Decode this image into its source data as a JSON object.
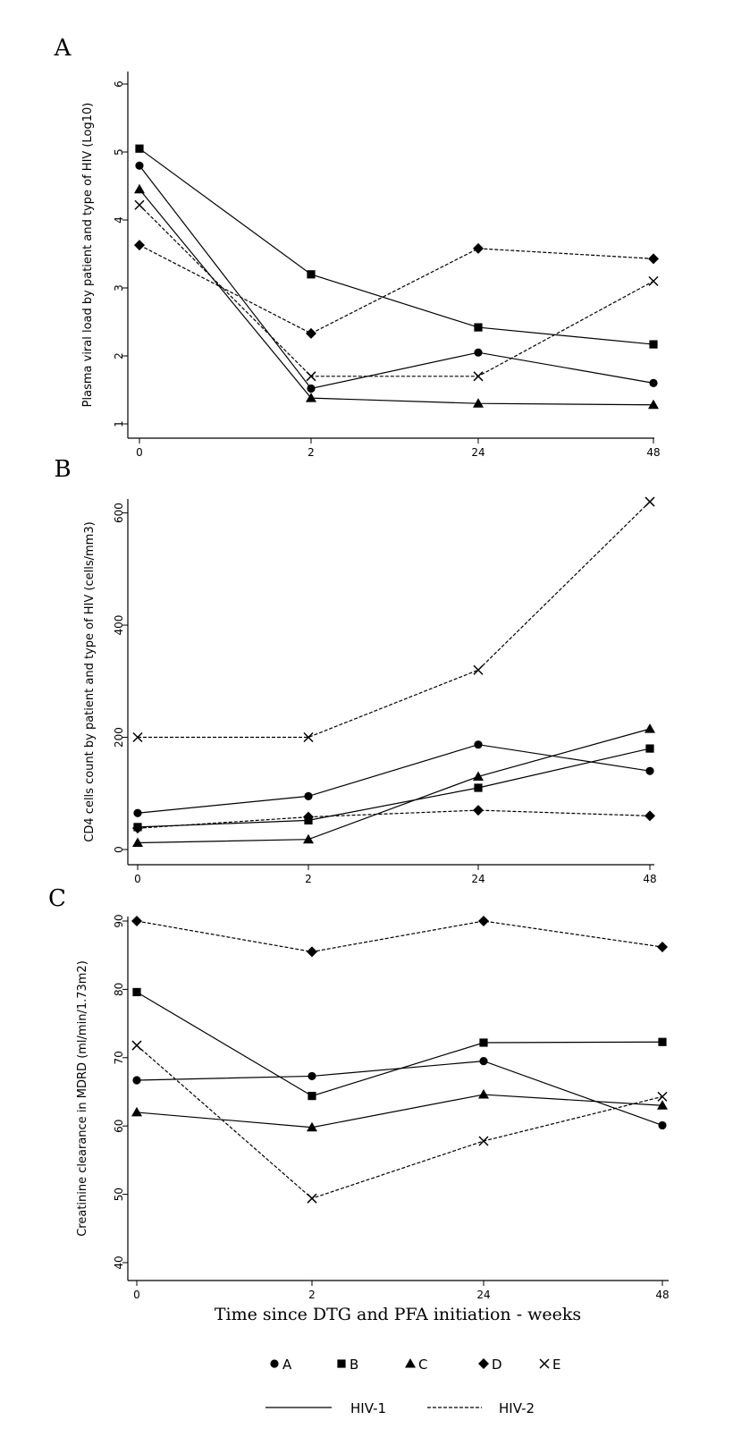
{
  "chart_data": [
    {
      "type": "line",
      "panel": "A",
      "title": "",
      "xlabel": "",
      "ylabel": "Plasma viral load by patient and type of HIV (Log10)",
      "x": [
        "0",
        "2",
        "24",
        "48"
      ],
      "ylim": [
        1,
        6
      ],
      "yticks": [
        1,
        2,
        3,
        4,
        5,
        6
      ],
      "grid": false,
      "series": [
        {
          "name": "A",
          "marker": "circle",
          "hiv": "HIV-1",
          "values": [
            4.8,
            1.52,
            2.05,
            1.6
          ]
        },
        {
          "name": "B",
          "marker": "square",
          "hiv": "HIV-1",
          "values": [
            5.05,
            3.2,
            2.42,
            2.17
          ]
        },
        {
          "name": "C",
          "marker": "triangle",
          "hiv": "HIV-1",
          "values": [
            4.45,
            1.38,
            1.3,
            1.28
          ]
        },
        {
          "name": "D",
          "marker": "diamond",
          "hiv": "HIV-2",
          "values": [
            3.63,
            2.33,
            3.58,
            3.43
          ]
        },
        {
          "name": "E",
          "marker": "x",
          "hiv": "HIV-2",
          "values": [
            4.22,
            1.7,
            1.7,
            3.1
          ]
        }
      ]
    },
    {
      "type": "line",
      "panel": "B",
      "title": "",
      "xlabel": "",
      "ylabel": "CD4 cells count by patient and type of HIV (cells/mm3)",
      "x": [
        "0",
        "2",
        "24",
        "48"
      ],
      "ylim": [
        0,
        640
      ],
      "yticks": [
        0,
        200,
        400,
        600
      ],
      "grid": false,
      "series": [
        {
          "name": "A",
          "marker": "circle",
          "hiv": "HIV-1",
          "values": [
            65,
            95,
            187,
            140
          ]
        },
        {
          "name": "B",
          "marker": "square",
          "hiv": "HIV-1",
          "values": [
            40,
            52,
            110,
            180
          ]
        },
        {
          "name": "C",
          "marker": "triangle",
          "hiv": "HIV-1",
          "values": [
            12,
            18,
            130,
            215
          ]
        },
        {
          "name": "D",
          "marker": "diamond",
          "hiv": "HIV-2",
          "values": [
            38,
            58,
            70,
            60
          ]
        },
        {
          "name": "E",
          "marker": "x",
          "hiv": "HIV-2",
          "values": [
            200,
            200,
            320,
            620
          ]
        }
      ]
    },
    {
      "type": "line",
      "panel": "C",
      "title": "",
      "xlabel": "Time since DTG and PFA initiation - weeks",
      "ylabel": "Creatinine clearance in MDRD (ml/min/1.73m2)",
      "x": [
        "0",
        "2",
        "24",
        "48"
      ],
      "ylim": [
        40,
        90
      ],
      "yticks": [
        40,
        50,
        60,
        70,
        80,
        90
      ],
      "grid": false,
      "series": [
        {
          "name": "A",
          "marker": "circle",
          "hiv": "HIV-1",
          "values": [
            66.7,
            67.3,
            69.5,
            60.1
          ]
        },
        {
          "name": "B",
          "marker": "square",
          "hiv": "HIV-1",
          "values": [
            79.6,
            64.4,
            72.2,
            72.3
          ]
        },
        {
          "name": "C",
          "marker": "triangle",
          "hiv": "HIV-1",
          "values": [
            62.0,
            59.8,
            64.6,
            63.0
          ]
        },
        {
          "name": "D",
          "marker": "diamond",
          "hiv": "HIV-2",
          "values": [
            90.0,
            85.5,
            90.0,
            86.2
          ]
        },
        {
          "name": "E",
          "marker": "x",
          "hiv": "HIV-2",
          "values": [
            71.8,
            49.4,
            57.8,
            64.3
          ]
        }
      ]
    }
  ],
  "legend": {
    "patients": [
      {
        "label": "A",
        "marker": "circle"
      },
      {
        "label": "B",
        "marker": "square"
      },
      {
        "label": "C",
        "marker": "triangle"
      },
      {
        "label": "D",
        "marker": "diamond"
      },
      {
        "label": "E",
        "marker": "x"
      }
    ],
    "hiv_types": [
      {
        "label": "HIV-1",
        "style": "solid"
      },
      {
        "label": "HIV-2",
        "style": "dashed"
      }
    ]
  }
}
